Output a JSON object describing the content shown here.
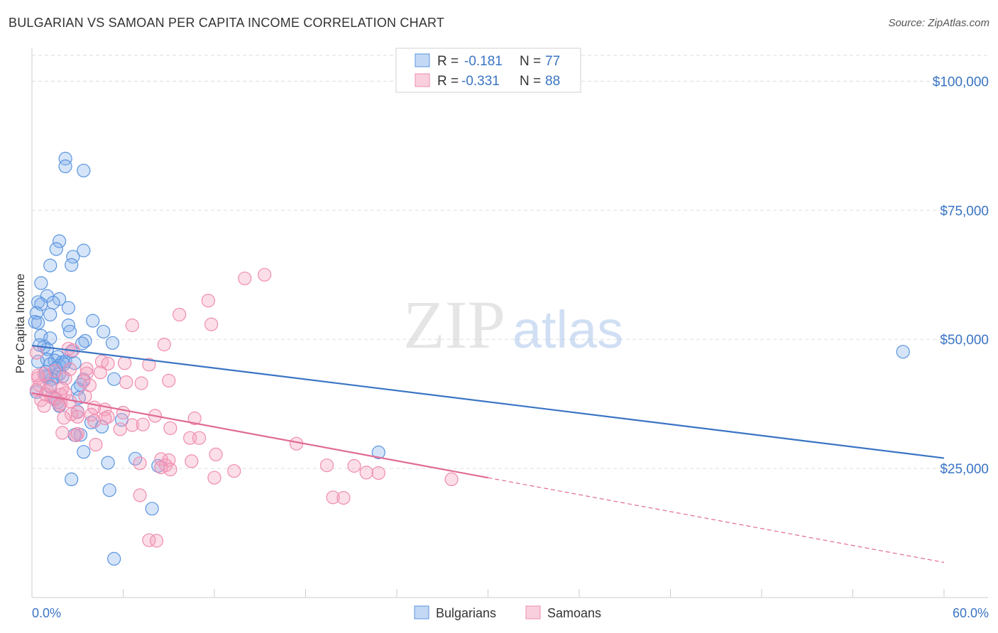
{
  "title": "BULGARIAN VS SAMOAN PER CAPITA INCOME CORRELATION CHART",
  "source": "Source: ZipAtlas.com",
  "watermark": {
    "zip": "ZIP",
    "atlas": "atlas"
  },
  "colors": {
    "blue": "#3a74c4",
    "blue_fill": "rgba(135,178,236,0.35)",
    "blue_stroke": "#5b95e0",
    "pink": "#e06b94",
    "pink_fill": "rgba(244,160,190,0.35)",
    "pink_stroke": "#f08cb0",
    "grid": "#dddddd"
  },
  "chart_data": {
    "type": "scatter",
    "title": "BULGARIAN VS SAMOAN PER CAPITA INCOME CORRELATION CHART",
    "xlabel": "",
    "ylabel": "Per Capita Income",
    "xlim": [
      0,
      60
    ],
    "ylim": [
      0,
      105000
    ],
    "x_tick_labels": [
      "0.0%",
      "60.0%"
    ],
    "y_ticks": [
      25000,
      50000,
      75000,
      100000
    ],
    "y_tick_labels": [
      "$25,000",
      "$50,000",
      "$75,000",
      "$100,000"
    ],
    "legend": {
      "rows": [
        {
          "r_label": "R = ",
          "r_value": "-0.181",
          "n_label": "N = ",
          "n_value": "77"
        },
        {
          "r_label": "R = ",
          "r_value": "-0.331",
          "n_label": "N = ",
          "n_value": "88"
        }
      ],
      "series_names": [
        "Bulgarians",
        "Samoans"
      ]
    },
    "series": [
      {
        "name": "Bulgarians",
        "trend": {
          "x0": 0,
          "y0": 48800,
          "x1": 60,
          "y1": 27000
        },
        "points": [
          [
            2.2,
            85000
          ],
          [
            3.4,
            82700
          ],
          [
            2.2,
            83500
          ],
          [
            1.8,
            69000
          ],
          [
            3.4,
            67200
          ],
          [
            1.6,
            67500
          ],
          [
            2.7,
            66000
          ],
          [
            1.2,
            64300
          ],
          [
            2.6,
            64400
          ],
          [
            0.6,
            60900
          ],
          [
            1.0,
            58400
          ],
          [
            1.8,
            57800
          ],
          [
            0.4,
            57200
          ],
          [
            1.4,
            57100
          ],
          [
            0.6,
            56800
          ],
          [
            2.4,
            56100
          ],
          [
            0.3,
            55100
          ],
          [
            1.2,
            54800
          ],
          [
            0.2,
            53400
          ],
          [
            0.4,
            53200
          ],
          [
            4.0,
            53600
          ],
          [
            2.4,
            52700
          ],
          [
            2.5,
            51500
          ],
          [
            4.7,
            51500
          ],
          [
            0.6,
            50700
          ],
          [
            1.2,
            50200
          ],
          [
            3.5,
            49700
          ],
          [
            3.3,
            49200
          ],
          [
            5.3,
            49300
          ],
          [
            0.8,
            48600
          ],
          [
            1.0,
            48100
          ],
          [
            2.6,
            47600
          ],
          [
            1.7,
            46600
          ],
          [
            1.0,
            46100
          ],
          [
            1.5,
            45900
          ],
          [
            0.4,
            45700
          ],
          [
            2.0,
            45600
          ],
          [
            2.2,
            45700
          ],
          [
            2.8,
            45400
          ],
          [
            1.2,
            45200
          ],
          [
            1.8,
            44900
          ],
          [
            1.6,
            44400
          ],
          [
            0.9,
            43700
          ],
          [
            1.6,
            42700
          ],
          [
            1.8,
            43300
          ],
          [
            2.0,
            42800
          ],
          [
            1.3,
            42300
          ],
          [
            3.4,
            42200
          ],
          [
            5.4,
            42300
          ],
          [
            1.0,
            42600
          ],
          [
            3.2,
            41200
          ],
          [
            3.0,
            40400
          ],
          [
            0.3,
            39800
          ],
          [
            3.1,
            38700
          ],
          [
            1.7,
            37800
          ],
          [
            1.8,
            37100
          ],
          [
            3.0,
            36000
          ],
          [
            5.9,
            34400
          ],
          [
            3.9,
            33900
          ],
          [
            4.6,
            33100
          ],
          [
            3.2,
            31500
          ],
          [
            2.8,
            31500
          ],
          [
            3.4,
            28200
          ],
          [
            22.8,
            28100
          ],
          [
            6.8,
            26900
          ],
          [
            5.0,
            26100
          ],
          [
            8.3,
            25500
          ],
          [
            2.6,
            22900
          ],
          [
            5.1,
            20800
          ],
          [
            7.9,
            17200
          ],
          [
            5.4,
            7500
          ],
          [
            57.3,
            47600
          ],
          [
            0.9,
            42900
          ],
          [
            2.1,
            45200
          ],
          [
            1.2,
            40800
          ],
          [
            1.5,
            38600
          ],
          [
            0.5,
            48900
          ]
        ]
      },
      {
        "name": "Samoans",
        "trend": {
          "x0": 0,
          "y0": 39600,
          "x1": 30,
          "y1": 23200
        },
        "trend_ext": {
          "x0": 30,
          "y0": 23200,
          "x1": 60,
          "y1": 6800
        },
        "points": [
          [
            15.3,
            62500
          ],
          [
            14.0,
            61800
          ],
          [
            11.6,
            57500
          ],
          [
            9.7,
            54800
          ],
          [
            11.8,
            52900
          ],
          [
            6.6,
            52700
          ],
          [
            8.7,
            49000
          ],
          [
            2.4,
            48200
          ],
          [
            2.7,
            47900
          ],
          [
            0.3,
            47400
          ],
          [
            4.6,
            45700
          ],
          [
            5.0,
            45300
          ],
          [
            6.1,
            45400
          ],
          [
            7.7,
            45100
          ],
          [
            3.6,
            44300
          ],
          [
            2.5,
            44200
          ],
          [
            1.5,
            43900
          ],
          [
            4.5,
            43600
          ],
          [
            3.6,
            43400
          ],
          [
            0.8,
            43300
          ],
          [
            2.2,
            42400
          ],
          [
            0.4,
            42500
          ],
          [
            3.4,
            41900
          ],
          [
            6.2,
            41700
          ],
          [
            7.2,
            41500
          ],
          [
            9.0,
            42000
          ],
          [
            3.8,
            41100
          ],
          [
            0.5,
            41100
          ],
          [
            0.3,
            40200
          ],
          [
            1.0,
            40000
          ],
          [
            2.2,
            39600
          ],
          [
            1.9,
            39300
          ],
          [
            3.5,
            39000
          ],
          [
            1.3,
            38800
          ],
          [
            1.6,
            38400
          ],
          [
            0.6,
            38200
          ],
          [
            2.5,
            38000
          ],
          [
            1.9,
            37600
          ],
          [
            1.8,
            37300
          ],
          [
            0.8,
            37100
          ],
          [
            4.1,
            36800
          ],
          [
            4.8,
            36400
          ],
          [
            3.0,
            35900
          ],
          [
            2.6,
            35500
          ],
          [
            3.9,
            35400
          ],
          [
            5.0,
            35000
          ],
          [
            8.1,
            35200
          ],
          [
            10.7,
            34700
          ],
          [
            4.8,
            34700
          ],
          [
            2.1,
            34800
          ],
          [
            4.1,
            34200
          ],
          [
            6.6,
            33400
          ],
          [
            9.1,
            32800
          ],
          [
            5.8,
            32600
          ],
          [
            2.0,
            31900
          ],
          [
            3.0,
            31700
          ],
          [
            2.9,
            31400
          ],
          [
            10.4,
            30900
          ],
          [
            11.0,
            30900
          ],
          [
            17.4,
            29800
          ],
          [
            4.2,
            29600
          ],
          [
            12.1,
            27700
          ],
          [
            8.5,
            26800
          ],
          [
            9.0,
            26600
          ],
          [
            10.5,
            26400
          ],
          [
            7.1,
            26000
          ],
          [
            8.8,
            25600
          ],
          [
            19.4,
            25600
          ],
          [
            21.2,
            25500
          ],
          [
            8.5,
            25200
          ],
          [
            9.1,
            24800
          ],
          [
            13.3,
            24500
          ],
          [
            22.0,
            24200
          ],
          [
            22.8,
            24100
          ],
          [
            12.0,
            23200
          ],
          [
            27.6,
            22900
          ],
          [
            7.1,
            19800
          ],
          [
            19.8,
            19400
          ],
          [
            20.5,
            19300
          ],
          [
            7.7,
            11100
          ],
          [
            8.2,
            11000
          ],
          [
            0.4,
            43000
          ],
          [
            1.2,
            41000
          ],
          [
            2.0,
            40500
          ],
          [
            0.9,
            39300
          ],
          [
            3.0,
            35000
          ],
          [
            6.0,
            35800
          ],
          [
            7.3,
            33500
          ]
        ]
      }
    ]
  }
}
